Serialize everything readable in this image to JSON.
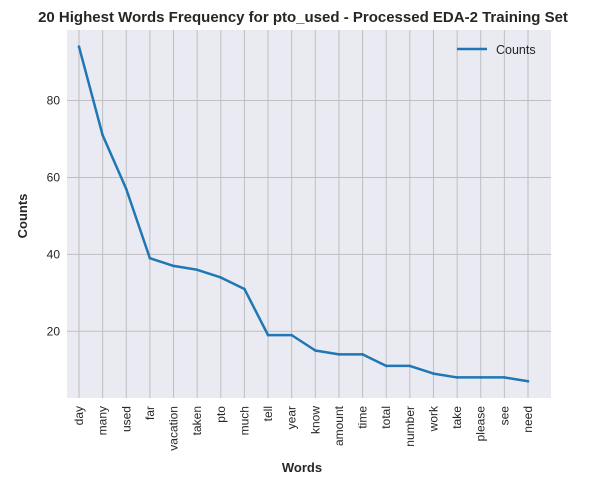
{
  "chart_data": {
    "type": "line",
    "title": "20 Highest Words Frequency for pto_used - Processed EDA-2 Training Set",
    "xlabel": "Words",
    "ylabel": "Counts",
    "categories": [
      "day",
      "many",
      "used",
      "far",
      "vacation",
      "taken",
      "pto",
      "much",
      "tell",
      "year",
      "know",
      "amount",
      "time",
      "total",
      "number",
      "work",
      "take",
      "please",
      "see",
      "need"
    ],
    "series": [
      {
        "name": "Counts",
        "values": [
          94,
          71,
          57,
          39,
          37,
          36,
          34,
          31,
          19,
          19,
          15,
          14,
          14,
          11,
          11,
          9,
          8,
          8,
          8,
          7
        ],
        "color": "#1f77b4"
      }
    ],
    "ylim": [
      2.65,
      98.35
    ],
    "yticks": [
      20,
      40,
      60,
      80
    ],
    "grid": true,
    "legend": "top-right",
    "colors": {
      "plot_background": "#eaeaf2",
      "grid": "#bfbfbf"
    }
  }
}
